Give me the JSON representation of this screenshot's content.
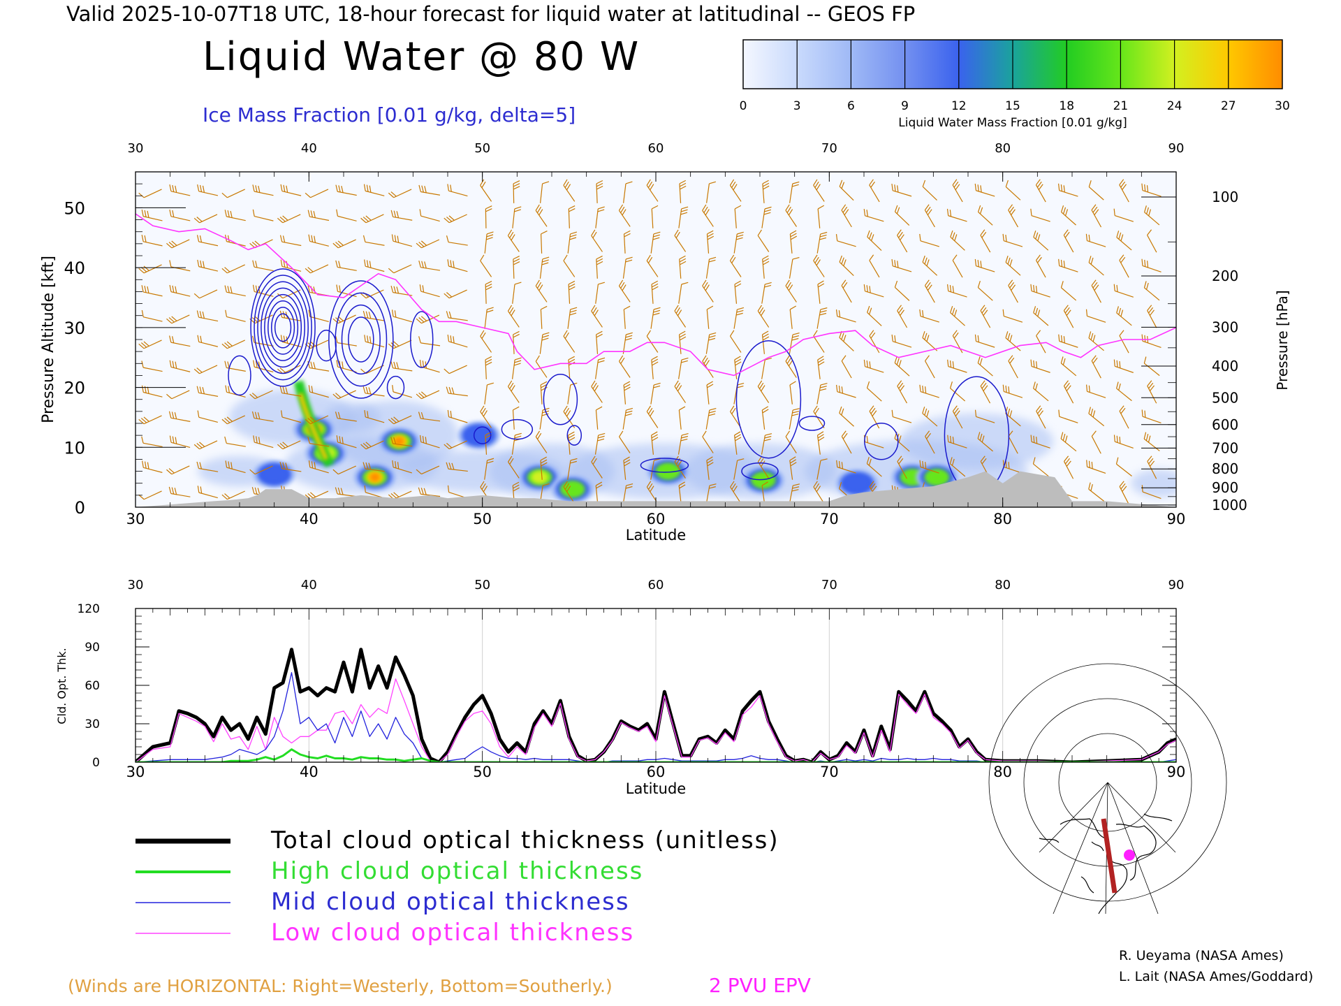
{
  "header": {
    "valid_line": "Valid 2025-10-07T18 UTC, 18-hour forecast for liquid water at latitudinal -- GEOS FP",
    "title": "Liquid Water @ 80 W",
    "subtitle": "Ice Mass Fraction [0.01 g/kg, delta=5]"
  },
  "colorbar": {
    "ticks": [
      "0",
      "3",
      "6",
      "9",
      "12",
      "15",
      "18",
      "21",
      "24",
      "27",
      "30"
    ],
    "colors": [
      "#f4f7ff",
      "#c9dafc",
      "#9fb9f6",
      "#7390f0",
      "#3a62ee",
      "#1aa39c",
      "#22cc22",
      "#66e61a",
      "#d2f020",
      "#ffc800",
      "#ff8c00",
      "#ff3c00"
    ],
    "label": "Liquid Water Mass Fraction [0.01 g/kg]"
  },
  "colors": {
    "epv": "#ff33ff",
    "wind": "#c87800",
    "ice_contour": "#1a1acc",
    "terrain": "#bdbdbd",
    "total": "#000000",
    "high": "#22dd22",
    "mid": "#2222dd",
    "low": "#ff44ff"
  },
  "cross_section": {
    "x_ticks": [
      "30",
      "40",
      "50",
      "60",
      "70",
      "80",
      "90"
    ],
    "xlabel": "Latitude",
    "ylabel_left": "Pressure Altitude [kft]",
    "y_ticks_left": [
      "0",
      "10",
      "20",
      "30",
      "40",
      "50"
    ],
    "ylabel_right": "Pressure [hPa]",
    "y_ticks_right": [
      "100",
      "200",
      "300",
      "400",
      "500",
      "600",
      "700",
      "800",
      "900",
      "1000"
    ]
  },
  "chart_data": [
    {
      "type": "heatmap",
      "title": "Liquid Water @ 80 W",
      "xlabel": "Latitude",
      "ylabel": "Pressure Altitude [kft]",
      "xlim": [
        30,
        90
      ],
      "ylim": [
        0,
        56
      ],
      "liquid_water_blobs": [
        {
          "lat": 40.3,
          "kft": 13,
          "value": 27
        },
        {
          "lat": 41.0,
          "kft": 9,
          "value": 22
        },
        {
          "lat": 43.8,
          "kft": 5,
          "value": 26
        },
        {
          "lat": 45.2,
          "kft": 11,
          "value": 28
        },
        {
          "lat": 53.3,
          "kft": 5,
          "value": 21
        },
        {
          "lat": 55.2,
          "kft": 3,
          "value": 18
        },
        {
          "lat": 60.7,
          "kft": 6,
          "value": 18
        },
        {
          "lat": 66.2,
          "kft": 4.5,
          "value": 18
        },
        {
          "lat": 71.6,
          "kft": 4,
          "value": 12
        },
        {
          "lat": 74.8,
          "kft": 5,
          "value": 18
        },
        {
          "lat": 76.2,
          "kft": 5,
          "value": 18
        },
        {
          "lat": 38.0,
          "kft": 5.5,
          "value": 12
        },
        {
          "lat": 49.8,
          "kft": 12,
          "value": 12
        }
      ],
      "epv_2pvu_kft": {
        "lat": [
          30,
          31,
          32.5,
          34,
          35.5,
          36.5,
          37.5,
          39,
          40.5,
          42,
          43,
          44,
          45,
          46.5,
          47.5,
          48.5,
          50,
          51.5,
          52,
          53,
          54.5,
          56,
          57,
          58.5,
          59.5,
          60.5,
          62,
          63,
          64.5,
          66.5,
          67.5,
          68.5,
          70,
          71.5,
          72.5,
          74,
          75.5,
          77,
          79,
          81,
          82.5,
          83.5,
          84.5,
          85.5,
          87,
          88.5,
          90
        ],
        "kft": [
          49,
          47,
          46,
          46.5,
          44.5,
          43,
          44,
          40,
          35.5,
          35,
          37,
          39,
          38,
          33,
          31,
          31,
          30,
          29,
          26,
          23,
          24,
          24,
          26,
          26,
          27.5,
          27.5,
          26,
          23,
          22,
          25,
          26,
          28,
          29,
          29.5,
          27,
          25,
          26,
          27,
          25,
          27,
          27.5,
          26,
          25,
          27,
          28,
          28,
          30
        ]
      },
      "ice_contour_centers": [
        {
          "lat": 38.5,
          "kft": 30,
          "max": 40
        },
        {
          "lat": 43,
          "kft": 28,
          "max": 20
        },
        {
          "lat": 66.5,
          "kft": 18,
          "max": 5
        },
        {
          "lat": 78.5,
          "kft": 12,
          "max": 5
        }
      ],
      "terrain_kft": {
        "lat": [
          30,
          34.5,
          35.5,
          36.5,
          37,
          37.5,
          39,
          40,
          41.5,
          43,
          45,
          47,
          48,
          50,
          52,
          53,
          55,
          57,
          59,
          60,
          62,
          64,
          66,
          68,
          70,
          71,
          72,
          74,
          76,
          78,
          79,
          80,
          81,
          83,
          84,
          86,
          90
        ],
        "kft": [
          0,
          1,
          1.2,
          1.5,
          2,
          3,
          3,
          1.5,
          1.5,
          2,
          1.5,
          2,
          1.5,
          2,
          1.5,
          1.5,
          1,
          1,
          1,
          1,
          1,
          1,
          1,
          1,
          1,
          2,
          2.5,
          3,
          3.5,
          5,
          6,
          4,
          6,
          5,
          1,
          1,
          0
        ]
      }
    },
    {
      "type": "line",
      "xlabel": "Latitude",
      "ylabel": "Cld. Opt. Thk.",
      "xlim": [
        30,
        90
      ],
      "ylim": [
        0,
        120
      ],
      "x_ticks": [
        "30",
        "40",
        "50",
        "60",
        "70",
        "80",
        "90"
      ],
      "y_ticks": [
        "0",
        "30",
        "60",
        "90",
        "120"
      ],
      "x": [
        30,
        31,
        32,
        32.5,
        33,
        33.5,
        34,
        34.5,
        35,
        35.5,
        36,
        36.5,
        37,
        37.5,
        38,
        38.5,
        39,
        39.5,
        40,
        40.5,
        41,
        41.5,
        42,
        42.5,
        43,
        43.5,
        44,
        44.5,
        45,
        45.5,
        46,
        46.5,
        47,
        47.5,
        48,
        48.5,
        49,
        49.5,
        50,
        50.5,
        51,
        51.5,
        52,
        52.5,
        53,
        53.5,
        54,
        54.5,
        55,
        55.5,
        56,
        56.5,
        57,
        57.5,
        58,
        58.5,
        59,
        59.5,
        60,
        60.5,
        61,
        61.5,
        62,
        62.5,
        63,
        63.5,
        64,
        64.5,
        65,
        65.5,
        66,
        66.5,
        67,
        67.5,
        68,
        68.5,
        69,
        69.5,
        70,
        70.5,
        71,
        71.5,
        72,
        72.5,
        73,
        73.5,
        74,
        74.5,
        75,
        75.5,
        76,
        76.5,
        77,
        77.5,
        78,
        78.5,
        79,
        80,
        82,
        84,
        86,
        88,
        89,
        89.5,
        90
      ],
      "series": [
        {
          "name": "Total cloud optical thickness (unitless)",
          "color": "#000000",
          "width": 5,
          "values": [
            0,
            12,
            15,
            40,
            38,
            35,
            30,
            20,
            35,
            25,
            30,
            18,
            35,
            22,
            58,
            62,
            88,
            55,
            58,
            52,
            58,
            55,
            78,
            55,
            88,
            58,
            75,
            58,
            82,
            68,
            52,
            18,
            3,
            0,
            8,
            22,
            35,
            45,
            52,
            38,
            18,
            8,
            15,
            8,
            30,
            40,
            30,
            48,
            20,
            5,
            1,
            2,
            8,
            18,
            32,
            28,
            25,
            30,
            18,
            55,
            30,
            5,
            5,
            18,
            20,
            15,
            25,
            18,
            40,
            48,
            55,
            32,
            18,
            5,
            1,
            2,
            0,
            8,
            2,
            5,
            15,
            8,
            25,
            5,
            28,
            10,
            55,
            48,
            40,
            55,
            38,
            32,
            25,
            12,
            18,
            8,
            2,
            1,
            1,
            0,
            1,
            2,
            8,
            15,
            18
          ]
        },
        {
          "name": "High cloud optical thickness",
          "color": "#22dd22",
          "width": 3,
          "values": [
            0,
            0,
            0,
            0,
            0,
            0,
            0,
            0,
            0,
            1,
            1,
            1,
            2,
            4,
            2,
            5,
            10,
            6,
            4,
            3,
            5,
            3,
            3,
            2,
            4,
            3,
            3,
            2,
            2,
            1,
            2,
            3,
            1,
            0,
            0,
            0,
            0,
            0,
            0,
            0,
            0,
            0,
            0,
            0,
            0,
            0,
            0,
            0,
            0,
            0,
            0,
            0,
            0,
            0,
            0,
            0,
            0,
            0,
            0,
            0,
            0,
            0,
            0,
            0,
            0,
            0,
            0,
            0,
            0,
            0,
            0,
            0,
            0,
            0,
            0,
            0,
            0,
            0,
            0,
            0,
            0,
            0,
            0,
            0,
            0,
            0,
            0,
            0,
            0,
            0,
            0,
            0,
            0,
            0,
            0,
            0,
            0,
            0,
            0,
            0,
            0,
            0,
            0,
            0,
            0
          ]
        },
        {
          "name": "Mid cloud optical thickness",
          "color": "#2222dd",
          "width": 1.3,
          "values": [
            0,
            1,
            2,
            2,
            2,
            2,
            2,
            3,
            4,
            6,
            10,
            8,
            6,
            10,
            20,
            40,
            70,
            30,
            35,
            25,
            30,
            15,
            35,
            20,
            40,
            20,
            30,
            18,
            35,
            22,
            15,
            3,
            1,
            0,
            1,
            2,
            3,
            8,
            12,
            8,
            5,
            3,
            3,
            2,
            3,
            2,
            2,
            2,
            2,
            1,
            0,
            0,
            0,
            1,
            1,
            1,
            1,
            2,
            2,
            3,
            2,
            1,
            1,
            1,
            1,
            1,
            2,
            2,
            3,
            5,
            3,
            2,
            2,
            1,
            0,
            0,
            0,
            1,
            0,
            1,
            2,
            1,
            2,
            1,
            3,
            2,
            2,
            3,
            2,
            2,
            3,
            2,
            2,
            1,
            1,
            1,
            0,
            0,
            0,
            0,
            0,
            0,
            0,
            1,
            2
          ]
        },
        {
          "name": "Low cloud optical thickness",
          "color": "#ff44ff",
          "width": 1.3,
          "values": [
            0,
            10,
            12,
            38,
            35,
            32,
            28,
            16,
            30,
            18,
            20,
            10,
            28,
            10,
            35,
            20,
            15,
            20,
            20,
            25,
            25,
            38,
            40,
            30,
            45,
            35,
            42,
            38,
            65,
            48,
            30,
            12,
            1,
            0,
            6,
            20,
            32,
            38,
            40,
            30,
            12,
            4,
            12,
            6,
            27,
            38,
            28,
            46,
            18,
            4,
            1,
            2,
            8,
            17,
            31,
            27,
            24,
            28,
            16,
            52,
            28,
            4,
            4,
            17,
            19,
            14,
            23,
            16,
            37,
            43,
            52,
            30,
            16,
            4,
            1,
            2,
            0,
            7,
            2,
            4,
            13,
            7,
            23,
            4,
            25,
            8,
            53,
            45,
            38,
            53,
            35,
            30,
            23,
            11,
            17,
            7,
            2,
            1,
            1,
            0,
            1,
            2,
            8,
            14,
            17
          ]
        }
      ]
    }
  ],
  "legend": {
    "items": [
      {
        "label": "Total cloud optical thickness (unitless)",
        "color": "#000000"
      },
      {
        "label": "High cloud optical thickness",
        "color": "#22dd22"
      },
      {
        "label": "Mid cloud optical thickness",
        "color": "#2222dd"
      },
      {
        "label": "Low cloud optical thickness",
        "color": "#ff44ff"
      }
    ]
  },
  "footer": {
    "winds_note": "(Winds are HORIZONTAL: Right=Westerly, Bottom=Southerly.)",
    "epv_label": "2 PVU EPV",
    "credit_1": "R. Ueyama (NASA Ames)",
    "credit_2": "L. Lait (NASA Ames/Goddard)"
  }
}
